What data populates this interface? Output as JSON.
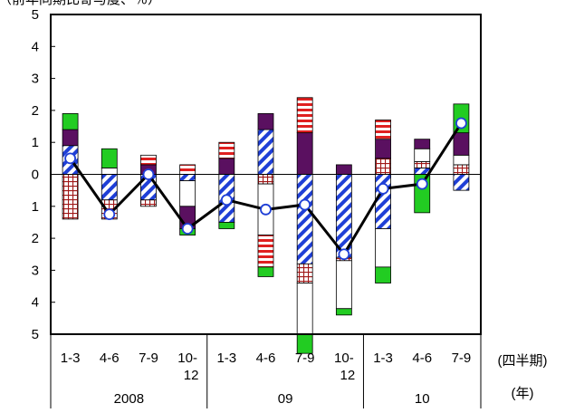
{
  "chart_data": {
    "type": "bar",
    "subtype": "stacked-contribution-bar-with-line",
    "ylabel": "（前年同期比寄与度、％）",
    "ylim": [
      -5,
      5
    ],
    "yticks": [
      -5,
      -4,
      -3,
      -2,
      -1,
      0,
      1,
      2,
      3,
      4,
      5
    ],
    "ytick_labels": [
      "5",
      "4",
      "3",
      "2",
      "1",
      "0",
      "1",
      "2",
      "3",
      "4",
      "5"
    ],
    "categories": [
      "1-3",
      "4-6",
      "7-9",
      "10-12",
      "1-3",
      "4-6",
      "7-9",
      "10-12",
      "1-3",
      "4-6",
      "7-9"
    ],
    "category_lines": [
      [
        "1-3"
      ],
      [
        "4-6"
      ],
      [
        "7-9"
      ],
      [
        "10-",
        "12"
      ],
      [
        "1-3"
      ],
      [
        "4-6"
      ],
      [
        "7-9"
      ],
      [
        "10-",
        "12"
      ],
      [
        "1-3"
      ],
      [
        "4-6"
      ],
      [
        "7-9"
      ]
    ],
    "year_groups": [
      {
        "label": "2008",
        "start": 0,
        "end": 3
      },
      {
        "label": "09",
        "start": 4,
        "end": 7
      },
      {
        "label": "10",
        "start": 8,
        "end": 10
      }
    ],
    "xlabel_quarter": "(四半期)",
    "xlabel_year": "(年)",
    "series": [
      {
        "key": "diag",
        "color": "#1f3fd6",
        "pattern": "diagonal-stripes",
        "values": [
          0.9,
          -0.8,
          -0.8,
          -0.2,
          -1.5,
          1.4,
          -2.8,
          -2.6,
          -1.7,
          0.2,
          -0.5
        ]
      },
      {
        "key": "grid",
        "color": "#a01818",
        "pattern": "grid",
        "values": [
          -1.4,
          -0.6,
          -0.2,
          0.0,
          0.0,
          -0.3,
          -0.6,
          -0.1,
          0.5,
          0.2,
          0.3
        ]
      },
      {
        "key": "plain",
        "color": "#ffffff",
        "pattern": "plain",
        "values": [
          0.0,
          0.2,
          0.0,
          -0.8,
          0.0,
          -1.6,
          -1.6,
          -1.5,
          -1.2,
          0.4,
          0.3
        ]
      },
      {
        "key": "purple",
        "color": "#5a1060",
        "pattern": "solid",
        "values": [
          0.5,
          0.0,
          0.3,
          -0.7,
          0.5,
          0.5,
          1.3,
          0.3,
          0.6,
          0.3,
          0.7
        ]
      },
      {
        "key": "hstripe",
        "color": "#e02020",
        "pattern": "horizontal-stripes",
        "values": [
          0.0,
          0.0,
          0.3,
          0.3,
          0.5,
          -1.0,
          1.1,
          0.0,
          0.6,
          0.0,
          0.0
        ]
      },
      {
        "key": "green",
        "color": "#22cc22",
        "pattern": "solid",
        "values": [
          0.5,
          0.6,
          0.0,
          -0.2,
          -0.2,
          -0.3,
          -0.6,
          -0.2,
          -0.5,
          -1.2,
          0.9
        ]
      }
    ],
    "line": {
      "name": "",
      "color": "#000000",
      "values": [
        0.5,
        -1.25,
        0.0,
        -1.7,
        -0.8,
        -1.1,
        -0.95,
        -2.5,
        -0.45,
        -0.3,
        1.6
      ]
    },
    "grid": false,
    "legend": "none"
  }
}
